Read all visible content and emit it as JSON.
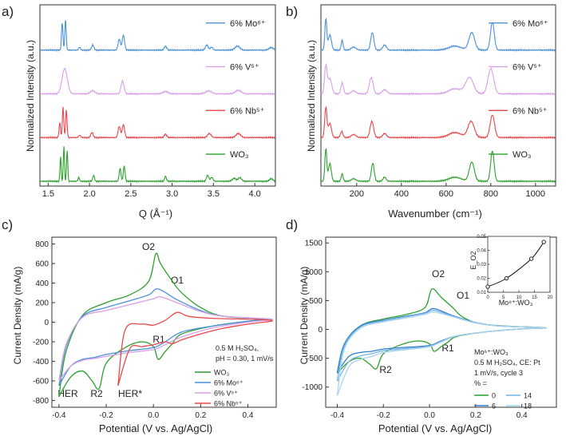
{
  "colors": {
    "green": "#2ca02c",
    "red": "#e8474c",
    "violet": "#d8a0e8",
    "blue": "#4a90d9",
    "lightblue": "#a9d3ee",
    "midblue": "#76b4e3",
    "deepblue": "#2f7fcf",
    "axis": "#333333"
  },
  "chart_data": [
    {
      "panel": "a)",
      "type": "line",
      "xlabel": "Q (Å⁻¹)",
      "ylabel": "Normalized Intensity (a.u.)",
      "xlim": [
        1.4,
        4.25
      ],
      "xticks": [
        "1.5",
        "2.0",
        "2.5",
        "3.0",
        "3.5",
        "4.0"
      ],
      "series": [
        {
          "name": "6% Mo⁶⁺",
          "color": "blue",
          "offset": 3,
          "peaks": [
            [
              1.67,
              0.55,
              0.012
            ],
            [
              1.71,
              0.62,
              0.012
            ],
            [
              1.88,
              0.06,
              0.015
            ],
            [
              2.04,
              0.1,
              0.02
            ],
            [
              2.36,
              0.22,
              0.02
            ],
            [
              2.41,
              0.3,
              0.02
            ],
            [
              2.92,
              0.08,
              0.02
            ],
            [
              3.42,
              0.1,
              0.025
            ],
            [
              3.48,
              0.06,
              0.02
            ],
            [
              3.79,
              0.08,
              0.04
            ],
            [
              4.2,
              0.05,
              0.04
            ]
          ]
        },
        {
          "name": "6% V⁵⁺",
          "color": "violet",
          "offset": 2,
          "peaks": [
            [
              1.7,
              0.5,
              0.045
            ],
            [
              2.04,
              0.06,
              0.04
            ],
            [
              2.4,
              0.26,
              0.025
            ],
            [
              2.92,
              0.05,
              0.04
            ],
            [
              3.44,
              0.06,
              0.05
            ],
            [
              3.8,
              0.07,
              0.05
            ]
          ]
        },
        {
          "name": "6% Nb⁵⁺",
          "color": "red",
          "offset": 1,
          "peaks": [
            [
              1.64,
              0.3,
              0.012
            ],
            [
              1.68,
              0.6,
              0.012
            ],
            [
              1.72,
              0.55,
              0.012
            ],
            [
              1.88,
              0.05,
              0.015
            ],
            [
              2.03,
              0.1,
              0.02
            ],
            [
              2.36,
              0.22,
              0.02
            ],
            [
              2.41,
              0.26,
              0.02
            ],
            [
              2.92,
              0.07,
              0.02
            ],
            [
              3.45,
              0.08,
              0.03
            ],
            [
              3.8,
              0.08,
              0.04
            ]
          ]
        },
        {
          "name": "WO₃",
          "color": "green",
          "offset": 0,
          "peaks": [
            [
              1.65,
              0.5,
              0.01
            ],
            [
              1.69,
              0.7,
              0.01
            ],
            [
              1.73,
              0.62,
              0.01
            ],
            [
              1.87,
              0.08,
              0.012
            ],
            [
              2.05,
              0.12,
              0.015
            ],
            [
              2.37,
              0.26,
              0.015
            ],
            [
              2.42,
              0.3,
              0.015
            ],
            [
              2.92,
              0.1,
              0.015
            ],
            [
              3.43,
              0.12,
              0.02
            ],
            [
              3.48,
              0.08,
              0.02
            ],
            [
              3.75,
              0.06,
              0.03
            ],
            [
              3.82,
              0.07,
              0.03
            ],
            [
              4.2,
              0.05,
              0.03
            ]
          ]
        }
      ]
    },
    {
      "panel": "b)",
      "type": "line",
      "xlabel": "Wavenumber (cm⁻¹)",
      "ylabel": "Normalized Intensity (a.u.)",
      "xlim": [
        40,
        1090
      ],
      "xticks": [
        "200",
        "400",
        "600",
        "800",
        "1000"
      ],
      "series": [
        {
          "name": "6% Mo⁶⁺",
          "color": "blue",
          "offset": 3,
          "peaks": [
            [
              62,
              0.62,
              6
            ],
            [
              80,
              0.3,
              10
            ],
            [
              135,
              0.2,
              6
            ],
            [
              186,
              0.06,
              15
            ],
            [
              270,
              0.35,
              10
            ],
            [
              325,
              0.1,
              12
            ],
            [
              640,
              0.08,
              40
            ],
            [
              715,
              0.35,
              18
            ],
            [
              807,
              0.55,
              12
            ]
          ]
        },
        {
          "name": "6% V⁵⁺",
          "color": "violet",
          "offset": 2,
          "peaks": [
            [
              62,
              0.55,
              8
            ],
            [
              80,
              0.3,
              12
            ],
            [
              135,
              0.22,
              8
            ],
            [
              186,
              0.06,
              15
            ],
            [
              265,
              0.32,
              12
            ],
            [
              325,
              0.08,
              15
            ],
            [
              640,
              0.1,
              40
            ],
            [
              705,
              0.32,
              25
            ],
            [
              800,
              0.5,
              18
            ]
          ]
        },
        {
          "name": "6% Nb⁵⁺",
          "color": "red",
          "offset": 1,
          "peaks": [
            [
              62,
              0.6,
              7
            ],
            [
              80,
              0.28,
              10
            ],
            [
              133,
              0.12,
              8
            ],
            [
              186,
              0.06,
              15
            ],
            [
              268,
              0.32,
              11
            ],
            [
              325,
              0.08,
              12
            ],
            [
              640,
              0.1,
              40
            ],
            [
              712,
              0.32,
              20
            ],
            [
              807,
              0.45,
              14
            ]
          ]
        },
        {
          "name": "WO₃",
          "color": "green",
          "offset": 0,
          "peaks": [
            [
              62,
              0.65,
              6
            ],
            [
              80,
              0.35,
              9
            ],
            [
              135,
              0.15,
              6
            ],
            [
              186,
              0.05,
              15
            ],
            [
              272,
              0.36,
              9
            ],
            [
              325,
              0.08,
              10
            ],
            [
              640,
              0.08,
              40
            ],
            [
              715,
              0.38,
              16
            ],
            [
              807,
              0.6,
              11
            ]
          ]
        }
      ]
    },
    {
      "panel": "c)",
      "type": "line",
      "xlabel": "Potential (V vs. Ag/AgCl)",
      "ylabel": "Current Density (mA/g)",
      "xlim": [
        -0.43,
        0.52
      ],
      "ylim": [
        -870,
        870
      ],
      "xticks": [
        "-0.4",
        "-0.2",
        "0.0",
        "0.2",
        "0.4"
      ],
      "yticks": [
        "800",
        "600",
        "400",
        "200",
        "0",
        "-200",
        "-400",
        "-600",
        "-800"
      ],
      "annotations": [
        "O2",
        "O1",
        "R1",
        "R2",
        "HER",
        "HER*"
      ],
      "conditions": [
        "0.5 M H₂SO₄,",
        "pH = 0.30, 1 mV/s"
      ],
      "legend": [
        "WO₃",
        "6% Mo⁶⁺",
        "6% V⁵⁺",
        "6% Nb⁵⁺"
      ],
      "series": [
        {
          "name": "WO₃",
          "color": "green",
          "x": [
            -0.4,
            -0.37,
            -0.3,
            -0.2,
            -0.1,
            -0.02,
            0.01,
            0.03,
            0.08,
            0.12,
            0.2,
            0.3,
            0.5,
            0.4,
            0.25,
            0.12,
            0.08,
            0.05,
            0.02,
            0.0,
            -0.05,
            -0.12,
            -0.2,
            -0.23,
            -0.26,
            -0.3,
            -0.35,
            -0.4
          ],
          "y": [
            -760,
            -300,
            70,
            200,
            280,
            420,
            700,
            600,
            420,
            300,
            150,
            60,
            30,
            10,
            -40,
            -120,
            -220,
            -300,
            -380,
            -250,
            -200,
            -260,
            -420,
            -680,
            -600,
            -500,
            -560,
            -760
          ]
        },
        {
          "name": "6% Mo⁶⁺",
          "color": "blue",
          "x": [
            -0.4,
            -0.37,
            -0.3,
            -0.2,
            -0.1,
            -0.02,
            0.02,
            0.1,
            0.2,
            0.3,
            0.5,
            0.4,
            0.25,
            0.12,
            0.05,
            0.0,
            -0.1,
            -0.2,
            -0.25,
            -0.3,
            -0.35,
            -0.4
          ],
          "y": [
            -650,
            -250,
            60,
            150,
            220,
            280,
            340,
            230,
            120,
            60,
            30,
            10,
            -40,
            -100,
            -200,
            -260,
            -290,
            -330,
            -360,
            -380,
            -450,
            -650
          ]
        },
        {
          "name": "6% V⁵⁺",
          "color": "violet",
          "x": [
            -0.4,
            -0.37,
            -0.3,
            -0.2,
            -0.1,
            0.0,
            0.03,
            0.1,
            0.2,
            0.3,
            0.5,
            0.4,
            0.25,
            0.12,
            0.05,
            0.0,
            -0.1,
            -0.2,
            -0.25,
            -0.3,
            -0.35,
            -0.4
          ],
          "y": [
            -600,
            -230,
            50,
            120,
            180,
            240,
            260,
            200,
            110,
            60,
            30,
            0,
            -60,
            -150,
            -230,
            -280,
            -310,
            -350,
            -370,
            -390,
            -450,
            -600
          ]
        },
        {
          "name": "6% Nb⁵⁺",
          "color": "red",
          "x": [
            -0.15,
            -0.12,
            -0.05,
            0.0,
            0.05,
            0.1,
            0.15,
            0.25,
            0.5,
            0.4,
            0.3,
            0.2,
            0.12,
            0.08,
            0.05,
            0.0,
            -0.05,
            -0.1,
            -0.15
          ],
          "y": [
            -650,
            -80,
            -20,
            -30,
            20,
            100,
            60,
            40,
            20,
            -20,
            -60,
            -120,
            -180,
            -220,
            -200,
            -230,
            -250,
            -270,
            -650
          ]
        }
      ]
    },
    {
      "panel": "d)",
      "type": "line",
      "xlabel": "Potential (V vs. Ag/AgCl)",
      "ylabel": "Current Density (mA/g)",
      "xlim": [
        -0.45,
        0.55
      ],
      "ylim": [
        -1350,
        1600
      ],
      "xticks": [
        "-0.4",
        "-0.2",
        "0.0",
        "0.2",
        "0.4"
      ],
      "yticks": [
        "1500",
        "1000",
        "500",
        "0",
        "-500",
        "-1000"
      ],
      "annotations": [
        "O2",
        "O1",
        "R1",
        "R2"
      ],
      "legend_title": [
        "Mo⁶⁺:WO₃",
        "0.5 M H₂SO₄, CE: Pt",
        "1 mV/s, cycle 3",
        "% ="
      ],
      "legend": [
        "0",
        "14",
        "6",
        "18"
      ],
      "series": [
        {
          "name": "0",
          "color": "green",
          "x": [
            -0.4,
            -0.37,
            -0.3,
            -0.2,
            -0.1,
            -0.02,
            0.01,
            0.05,
            0.1,
            0.15,
            0.25,
            0.5,
            0.4,
            0.25,
            0.12,
            0.08,
            0.05,
            0.02,
            0.0,
            -0.05,
            -0.12,
            -0.2,
            -0.23,
            -0.26,
            -0.3,
            -0.35,
            -0.4
          ],
          "y": [
            -760,
            -300,
            60,
            180,
            260,
            380,
            700,
            560,
            380,
            200,
            80,
            30,
            10,
            -40,
            -120,
            -220,
            -300,
            -380,
            -250,
            -200,
            -260,
            -420,
            -680,
            -600,
            -500,
            -560,
            -760
          ]
        },
        {
          "name": "6",
          "color": "deepblue",
          "x": [
            -0.4,
            -0.37,
            -0.3,
            -0.2,
            -0.1,
            -0.02,
            0.02,
            0.1,
            0.2,
            0.3,
            0.5,
            0.4,
            0.25,
            0.12,
            0.05,
            0.0,
            -0.1,
            -0.2,
            -0.25,
            -0.3,
            -0.35,
            -0.4
          ],
          "y": [
            -750,
            -260,
            60,
            160,
            230,
            290,
            360,
            240,
            120,
            60,
            30,
            10,
            -40,
            -110,
            -200,
            -280,
            -310,
            -340,
            -380,
            -400,
            -470,
            -750
          ]
        },
        {
          "name": "14",
          "color": "midblue",
          "x": [
            -0.4,
            -0.37,
            -0.3,
            -0.2,
            -0.1,
            -0.02,
            0.02,
            0.1,
            0.2,
            0.3,
            0.5,
            0.4,
            0.25,
            0.12,
            0.05,
            0.0,
            -0.1,
            -0.2,
            -0.25,
            -0.3,
            -0.35,
            -0.4
          ],
          "y": [
            -900,
            -300,
            40,
            150,
            220,
            280,
            330,
            230,
            120,
            60,
            30,
            10,
            -40,
            -110,
            -210,
            -290,
            -330,
            -370,
            -420,
            -460,
            -560,
            -900
          ]
        },
        {
          "name": "18",
          "color": "lightblue",
          "x": [
            -0.4,
            -0.37,
            -0.3,
            -0.2,
            -0.1,
            -0.02,
            0.02,
            0.1,
            0.2,
            0.3,
            0.5,
            0.4,
            0.25,
            0.12,
            0.05,
            0.0,
            -0.1,
            -0.2,
            -0.25,
            -0.3,
            -0.35,
            -0.4
          ],
          "y": [
            -1150,
            -350,
            20,
            130,
            200,
            260,
            300,
            220,
            110,
            60,
            30,
            10,
            -40,
            -110,
            -220,
            -300,
            -350,
            -400,
            -470,
            -520,
            -650,
            -1150
          ]
        }
      ],
      "inset": {
        "type": "scatter",
        "xlabel": "Mo⁶⁺:WO₃",
        "ylabel": "E_O2",
        "xlim": [
          0,
          20
        ],
        "ylim": [
          0.01,
          0.05
        ],
        "xticks": [
          "0",
          "5",
          "10",
          "15",
          "20"
        ],
        "yticks": [
          "0.05",
          "0.04",
          "0.03",
          "0.02",
          "0.01"
        ],
        "x": [
          0,
          6,
          14,
          18
        ],
        "y": [
          0.014,
          0.02,
          0.034,
          0.046
        ]
      }
    }
  ]
}
